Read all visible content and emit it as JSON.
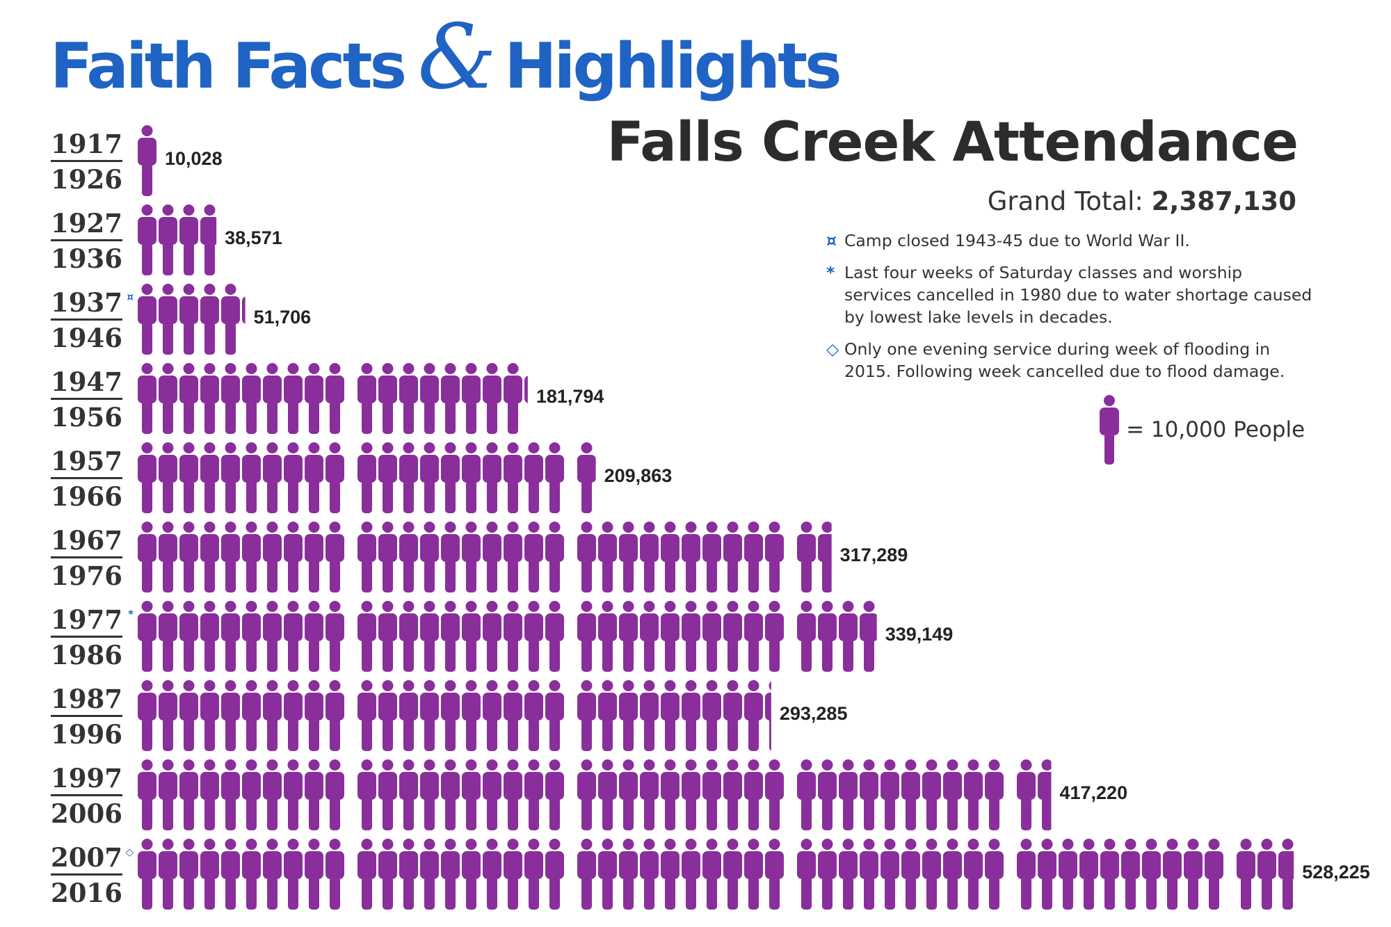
{
  "header": {
    "part1": "Faith Facts",
    "amp": "&",
    "part2": "Highlights"
  },
  "title": "Falls Creek Attendance",
  "grand_total": {
    "label": "Grand Total:",
    "value": "2,387,130"
  },
  "notes": [
    {
      "symbol": "¤",
      "text": "Camp closed 1943-45 due to World War II."
    },
    {
      "symbol": "*",
      "text": "Last four weeks of Saturday classes and worship services cancelled in 1980 due to water shortage caused by lowest lake levels in decades."
    },
    {
      "symbol": "◇",
      "text": "Only one evening service during week of flooding in 2015. Following week cancelled due to flood damage."
    }
  ],
  "legend": {
    "text": "= 10,000 People",
    "unit": 10000
  },
  "colors": {
    "figure": "#8a2e9c",
    "title_blue": "#1f63c4",
    "text": "#333333"
  },
  "chart_data": {
    "type": "pictogram",
    "title": "Falls Creek Attendance",
    "unit_per_icon": 10000,
    "periods": [
      {
        "start": "1917",
        "end": "1926",
        "value": 10028,
        "label": "10,028",
        "marker": ""
      },
      {
        "start": "1927",
        "end": "1936",
        "value": 38571,
        "label": "38,571",
        "marker": ""
      },
      {
        "start": "1937",
        "end": "1946",
        "value": 51706,
        "label": "51,706",
        "marker": "¤"
      },
      {
        "start": "1947",
        "end": "1956",
        "value": 181794,
        "label": "181,794",
        "marker": ""
      },
      {
        "start": "1957",
        "end": "1966",
        "value": 209863,
        "label": "209,863",
        "marker": ""
      },
      {
        "start": "1967",
        "end": "1976",
        "value": 317289,
        "label": "317,289",
        "marker": ""
      },
      {
        "start": "1977",
        "end": "1986",
        "value": 339149,
        "label": "339,149",
        "marker": "*"
      },
      {
        "start": "1987",
        "end": "1996",
        "value": 293285,
        "label": "293,285",
        "marker": ""
      },
      {
        "start": "1997",
        "end": "2006",
        "value": 417220,
        "label": "417,220",
        "marker": ""
      },
      {
        "start": "2007",
        "end": "2016",
        "value": 528225,
        "label": "528,225",
        "marker": "◇"
      }
    ]
  }
}
